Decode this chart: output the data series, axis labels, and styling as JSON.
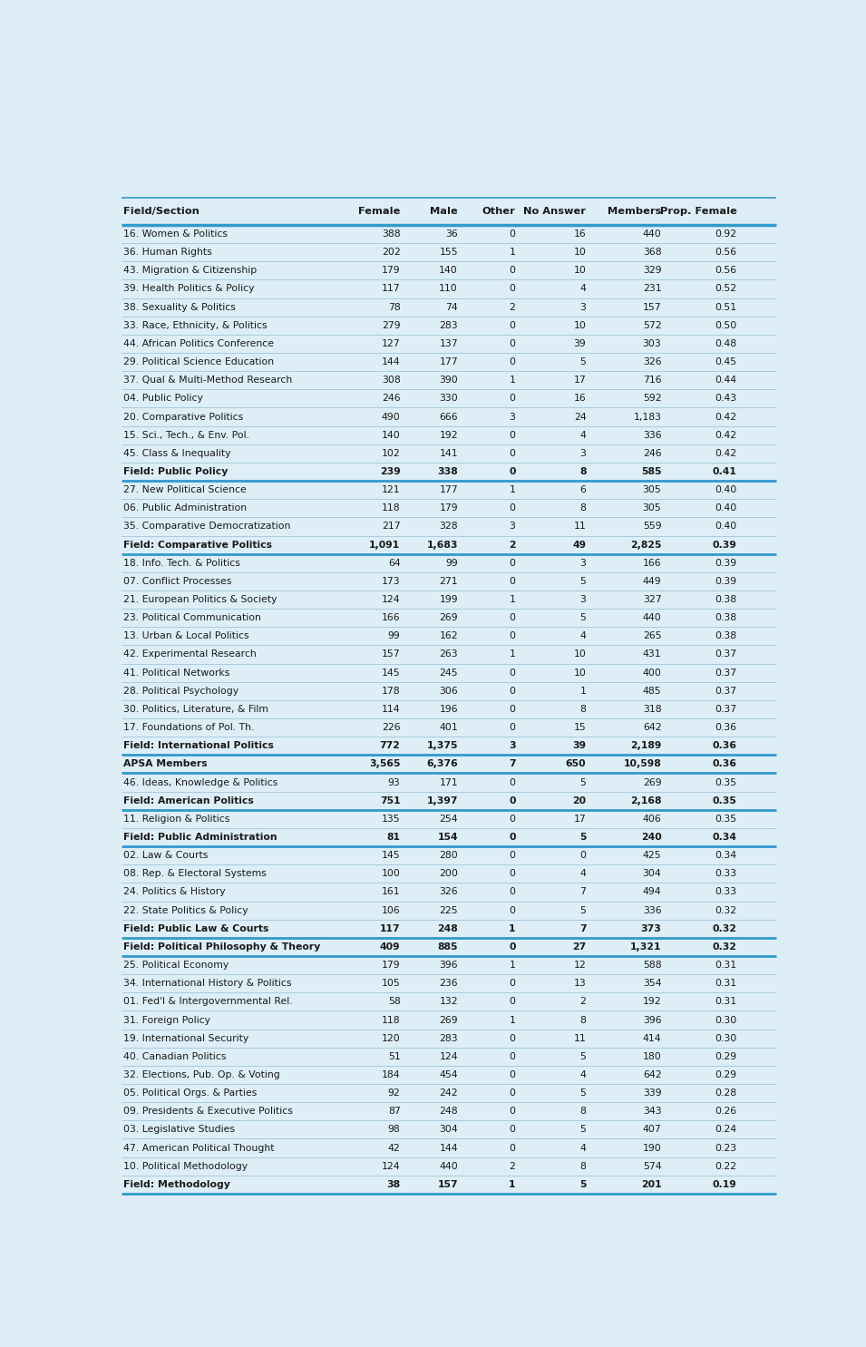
{
  "background_color": "#ddeef6",
  "header_line_color": "#3399cc",
  "row_line_color": "#aaccdd",
  "bold_row_line_color": "#3399cc",
  "header_text_color": "#1a1a1a",
  "normal_text_color": "#1a1a1a",
  "columns": [
    "Field/Section",
    "Female",
    "Male",
    "Other",
    "No Answer",
    "Members",
    "Prop. Female"
  ],
  "rows": [
    [
      "16. Women & Politics",
      "388",
      "36",
      "0",
      "16",
      "440",
      "0.92",
      false
    ],
    [
      "36. Human Rights",
      "202",
      "155",
      "1",
      "10",
      "368",
      "0.56",
      false
    ],
    [
      "43. Migration & Citizenship",
      "179",
      "140",
      "0",
      "10",
      "329",
      "0.56",
      false
    ],
    [
      "39. Health Politics & Policy",
      "117",
      "110",
      "0",
      "4",
      "231",
      "0.52",
      false
    ],
    [
      "38. Sexuality & Politics",
      "78",
      "74",
      "2",
      "3",
      "157",
      "0.51",
      false
    ],
    [
      "33. Race, Ethnicity, & Politics",
      "279",
      "283",
      "0",
      "10",
      "572",
      "0.50",
      false
    ],
    [
      "44. African Politics Conference",
      "127",
      "137",
      "0",
      "39",
      "303",
      "0.48",
      false
    ],
    [
      "29. Political Science Education",
      "144",
      "177",
      "0",
      "5",
      "326",
      "0.45",
      false
    ],
    [
      "37. Qual & Multi-Method Research",
      "308",
      "390",
      "1",
      "17",
      "716",
      "0.44",
      false
    ],
    [
      "04. Public Policy",
      "246",
      "330",
      "0",
      "16",
      "592",
      "0.43",
      false
    ],
    [
      "20. Comparative Politics",
      "490",
      "666",
      "3",
      "24",
      "1,183",
      "0.42",
      false
    ],
    [
      "15. Sci., Tech., & Env. Pol.",
      "140",
      "192",
      "0",
      "4",
      "336",
      "0.42",
      false
    ],
    [
      "45. Class & Inequality",
      "102",
      "141",
      "0",
      "3",
      "246",
      "0.42",
      false
    ],
    [
      "Field: Public Policy",
      "239",
      "338",
      "0",
      "8",
      "585",
      "0.41",
      true
    ],
    [
      "27. New Political Science",
      "121",
      "177",
      "1",
      "6",
      "305",
      "0.40",
      false
    ],
    [
      "06. Public Administration",
      "118",
      "179",
      "0",
      "8",
      "305",
      "0.40",
      false
    ],
    [
      "35. Comparative Democratization",
      "217",
      "328",
      "3",
      "11",
      "559",
      "0.40",
      false
    ],
    [
      "Field: Comparative Politics",
      "1,091",
      "1,683",
      "2",
      "49",
      "2,825",
      "0.39",
      true
    ],
    [
      "18. Info. Tech. & Politics",
      "64",
      "99",
      "0",
      "3",
      "166",
      "0.39",
      false
    ],
    [
      "07. Conflict Processes",
      "173",
      "271",
      "0",
      "5",
      "449",
      "0.39",
      false
    ],
    [
      "21. European Politics & Society",
      "124",
      "199",
      "1",
      "3",
      "327",
      "0.38",
      false
    ],
    [
      "23. Political Communication",
      "166",
      "269",
      "0",
      "5",
      "440",
      "0.38",
      false
    ],
    [
      "13. Urban & Local Politics",
      "99",
      "162",
      "0",
      "4",
      "265",
      "0.38",
      false
    ],
    [
      "42. Experimental Research",
      "157",
      "263",
      "1",
      "10",
      "431",
      "0.37",
      false
    ],
    [
      "41. Political Networks",
      "145",
      "245",
      "0",
      "10",
      "400",
      "0.37",
      false
    ],
    [
      "28. Political Psychology",
      "178",
      "306",
      "0",
      "1",
      "485",
      "0.37",
      false
    ],
    [
      "30. Politics, Literature, & Film",
      "114",
      "196",
      "0",
      "8",
      "318",
      "0.37",
      false
    ],
    [
      "17. Foundations of Pol. Th.",
      "226",
      "401",
      "0",
      "15",
      "642",
      "0.36",
      false
    ],
    [
      "Field: International Politics",
      "772",
      "1,375",
      "3",
      "39",
      "2,189",
      "0.36",
      true
    ],
    [
      "APSA Members",
      "3,565",
      "6,376",
      "7",
      "650",
      "10,598",
      "0.36",
      true
    ],
    [
      "46. Ideas, Knowledge & Politics",
      "93",
      "171",
      "0",
      "5",
      "269",
      "0.35",
      false
    ],
    [
      "Field: American Politics",
      "751",
      "1,397",
      "0",
      "20",
      "2,168",
      "0.35",
      true
    ],
    [
      "11. Religion & Politics",
      "135",
      "254",
      "0",
      "17",
      "406",
      "0.35",
      false
    ],
    [
      "Field: Public Administration",
      "81",
      "154",
      "0",
      "5",
      "240",
      "0.34",
      true
    ],
    [
      "02. Law & Courts",
      "145",
      "280",
      "0",
      "0",
      "425",
      "0.34",
      false
    ],
    [
      "08. Rep. & Electoral Systems",
      "100",
      "200",
      "0",
      "4",
      "304",
      "0.33",
      false
    ],
    [
      "24. Politics & History",
      "161",
      "326",
      "0",
      "7",
      "494",
      "0.33",
      false
    ],
    [
      "22. State Politics & Policy",
      "106",
      "225",
      "0",
      "5",
      "336",
      "0.32",
      false
    ],
    [
      "Field: Public Law & Courts",
      "117",
      "248",
      "1",
      "7",
      "373",
      "0.32",
      true
    ],
    [
      "Field: Political Philosophy & Theory",
      "409",
      "885",
      "0",
      "27",
      "1,321",
      "0.32",
      true
    ],
    [
      "25. Political Economy",
      "179",
      "396",
      "1",
      "12",
      "588",
      "0.31",
      false
    ],
    [
      "34. International History & Politics",
      "105",
      "236",
      "0",
      "13",
      "354",
      "0.31",
      false
    ],
    [
      "01. Fed'l & Intergovernmental Rel.",
      "58",
      "132",
      "0",
      "2",
      "192",
      "0.31",
      false
    ],
    [
      "31. Foreign Policy",
      "118",
      "269",
      "1",
      "8",
      "396",
      "0.30",
      false
    ],
    [
      "19. International Security",
      "120",
      "283",
      "0",
      "11",
      "414",
      "0.30",
      false
    ],
    [
      "40. Canadian Politics",
      "51",
      "124",
      "0",
      "5",
      "180",
      "0.29",
      false
    ],
    [
      "32. Elections, Pub. Op. & Voting",
      "184",
      "454",
      "0",
      "4",
      "642",
      "0.29",
      false
    ],
    [
      "05. Political Orgs. & Parties",
      "92",
      "242",
      "0",
      "5",
      "339",
      "0.28",
      false
    ],
    [
      "09. Presidents & Executive Politics",
      "87",
      "248",
      "0",
      "8",
      "343",
      "0.26",
      false
    ],
    [
      "03. Legislative Studies",
      "98",
      "304",
      "0",
      "5",
      "407",
      "0.24",
      false
    ],
    [
      "47. American Political Thought",
      "42",
      "144",
      "0",
      "4",
      "190",
      "0.23",
      false
    ],
    [
      "10. Political Methodology",
      "124",
      "440",
      "2",
      "8",
      "574",
      "0.22",
      false
    ],
    [
      "Field: Methodology",
      "38",
      "157",
      "1",
      "5",
      "201",
      "0.19",
      true
    ]
  ]
}
